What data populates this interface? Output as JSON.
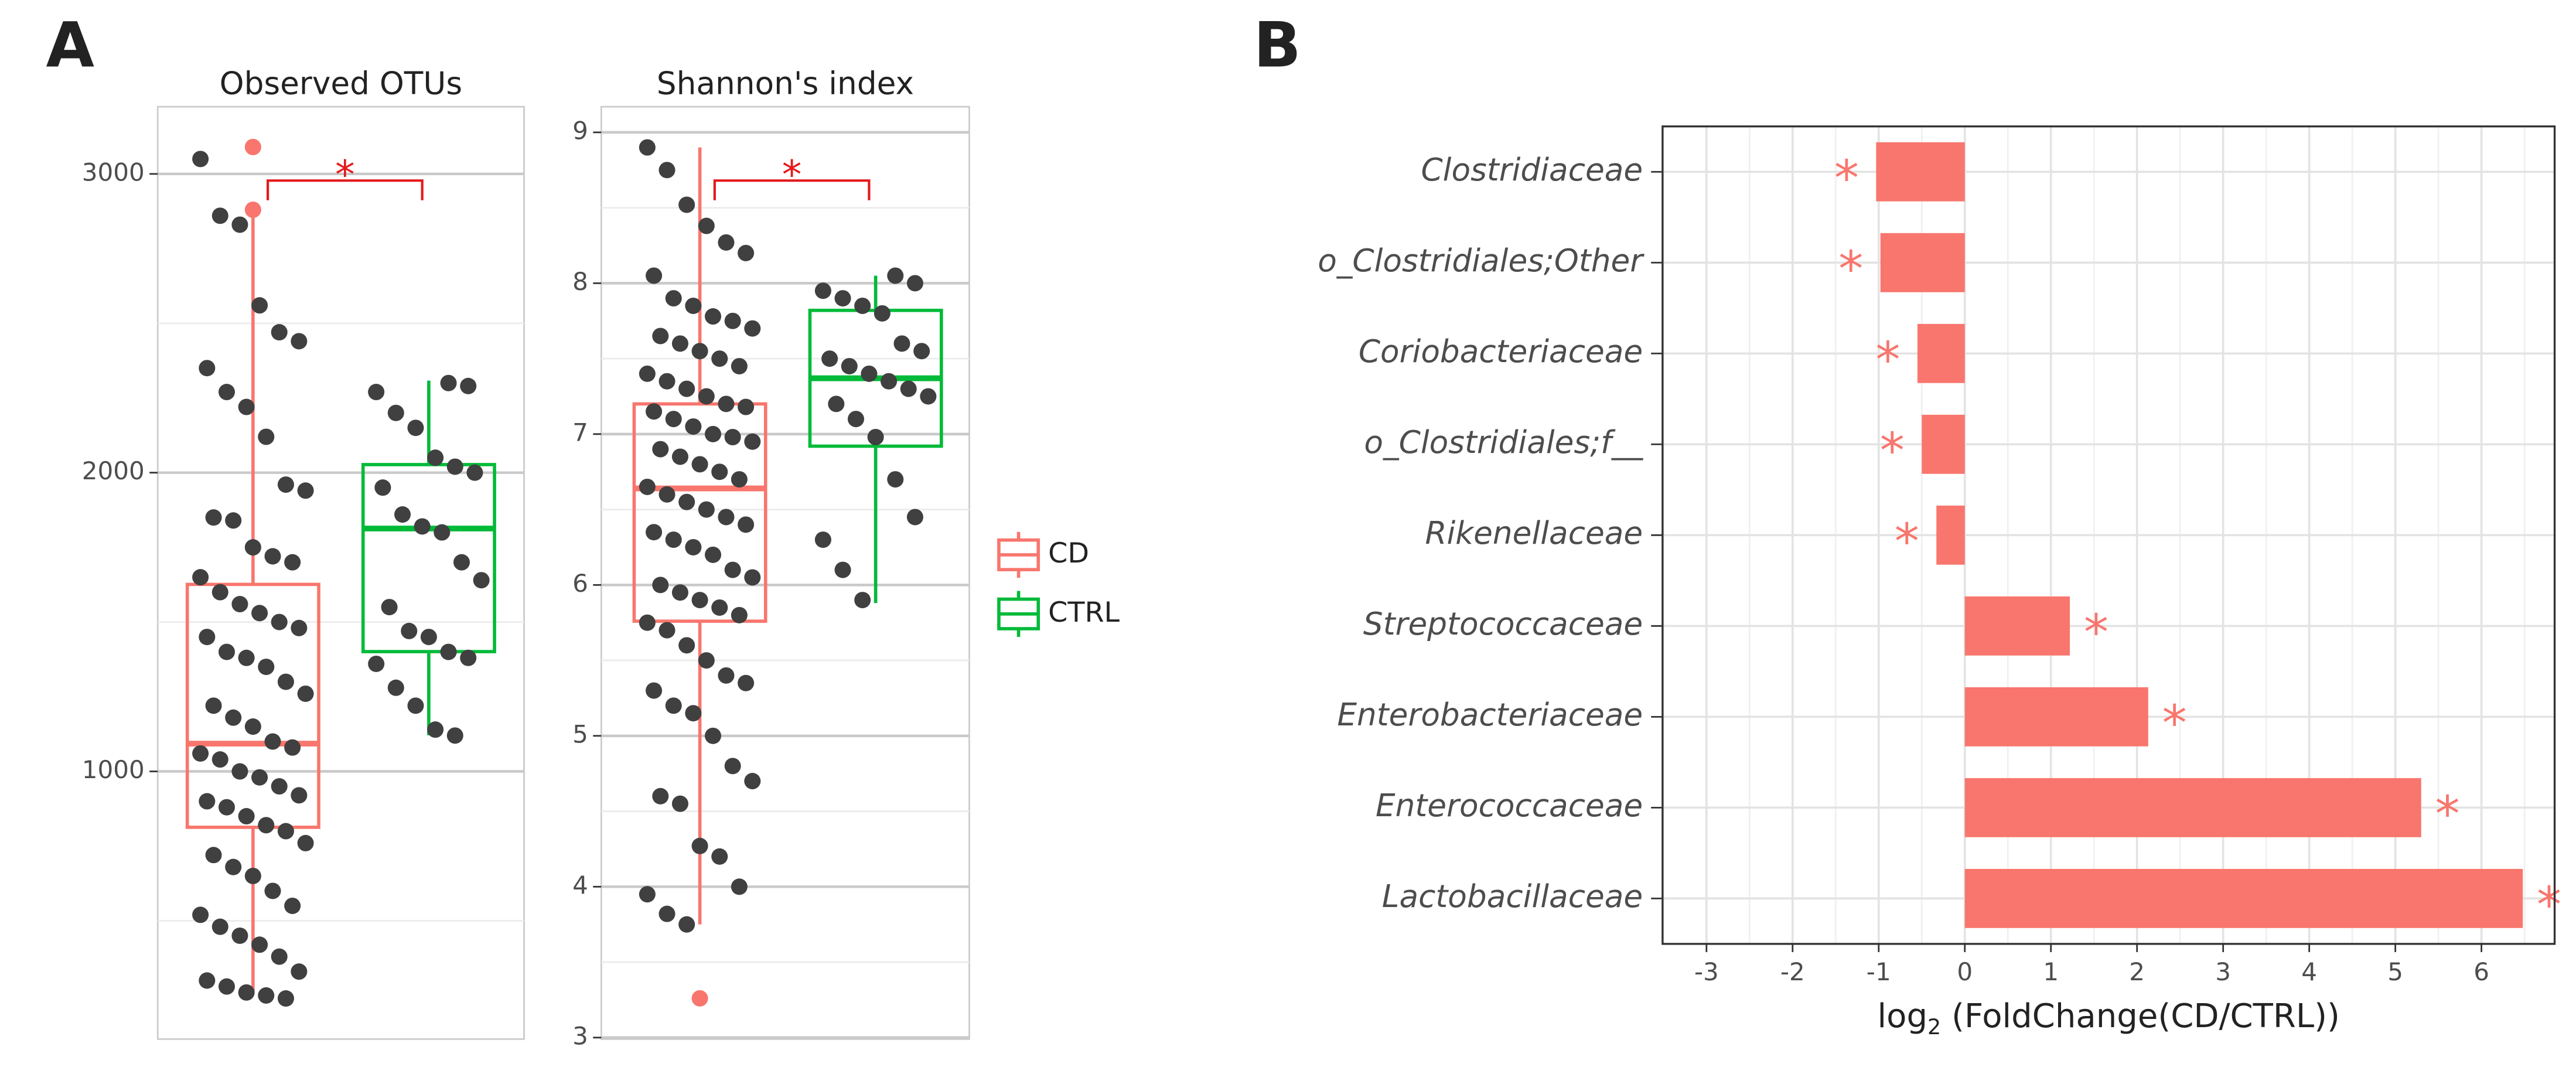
{
  "chart_data": [
    {
      "type": "box",
      "panel": "A",
      "title": "Observed OTUs",
      "ylim": [
        104,
        3225
      ],
      "yticks": [
        1000,
        2000,
        3000
      ],
      "minor_yticks": [
        500,
        1500,
        2500
      ],
      "grid": true,
      "significance": "*",
      "groups": [
        {
          "color": "#f8766d",
          "whisker_low": 258,
          "q1": 813,
          "median": 1093,
          "q3": 1626,
          "whisker_high": 2868,
          "outliers": [
            3090,
            2880
          ],
          "points": [
            3050,
            2860,
            2830,
            2560,
            2470,
            2440,
            2350,
            2270,
            2220,
            2120,
            1960,
            1940,
            1850,
            1840,
            1750,
            1720,
            1700,
            1650,
            1600,
            1560,
            1530,
            1500,
            1480,
            1450,
            1400,
            1380,
            1350,
            1300,
            1260,
            1220,
            1180,
            1150,
            1100,
            1080,
            1060,
            1040,
            1000,
            980,
            950,
            920,
            900,
            880,
            850,
            820,
            800,
            760,
            720,
            680,
            650,
            600,
            550,
            520,
            480,
            450,
            420,
            380,
            330,
            300,
            280,
            260,
            250,
            240
          ]
        },
        {
          "color": "#00ba38",
          "whisker_low": 1121,
          "q1": 1401,
          "median": 1813,
          "q3": 2027,
          "whisker_high": 2308,
          "outliers": [],
          "points": [
            2300,
            2290,
            2270,
            2200,
            2150,
            2050,
            2020,
            2000,
            1950,
            1860,
            1820,
            1800,
            1700,
            1640,
            1550,
            1470,
            1450,
            1400,
            1380,
            1360,
            1280,
            1220,
            1140,
            1120
          ]
        }
      ]
    },
    {
      "type": "box",
      "title": "Shannon's index",
      "ylim": [
        2.99,
        9.17
      ],
      "yticks": [
        3,
        4,
        5,
        6,
        7,
        8,
        9
      ],
      "minor_yticks": [
        3.5,
        4.5,
        5.5,
        6.5,
        7.5,
        8.5
      ],
      "grid": true,
      "significance": "*",
      "legend": true,
      "groups": [
        {
          "name": "CD",
          "color": "#f8766d",
          "whisker_low": 3.75,
          "q1": 5.76,
          "median": 6.64,
          "q3": 7.2,
          "whisker_high": 8.9,
          "outliers": [
            3.26
          ],
          "points": [
            8.9,
            8.75,
            8.52,
            8.38,
            8.27,
            8.2,
            8.05,
            7.9,
            7.85,
            7.78,
            7.75,
            7.7,
            7.65,
            7.6,
            7.55,
            7.5,
            7.45,
            7.4,
            7.35,
            7.3,
            7.25,
            7.2,
            7.18,
            7.15,
            7.1,
            7.05,
            7.0,
            6.98,
            6.95,
            6.9,
            6.85,
            6.8,
            6.75,
            6.7,
            6.65,
            6.6,
            6.55,
            6.5,
            6.45,
            6.4,
            6.35,
            6.3,
            6.25,
            6.2,
            6.1,
            6.05,
            6.0,
            5.95,
            5.9,
            5.85,
            5.8,
            5.75,
            5.7,
            5.6,
            5.5,
            5.4,
            5.35,
            5.3,
            5.2,
            5.15,
            5.0,
            4.8,
            4.7,
            4.6,
            4.55,
            4.27,
            4.2,
            4.0,
            3.95,
            3.82,
            3.75
          ]
        },
        {
          "name": "CTRL",
          "color": "#00ba38",
          "whisker_low": 5.88,
          "q1": 6.92,
          "median": 7.37,
          "q3": 7.82,
          "whisker_high": 8.05,
          "outliers": [],
          "points": [
            8.05,
            8.0,
            7.95,
            7.9,
            7.85,
            7.8,
            7.6,
            7.55,
            7.5,
            7.45,
            7.4,
            7.35,
            7.3,
            7.25,
            7.2,
            7.1,
            6.98,
            6.7,
            6.45,
            6.3,
            6.1,
            5.9
          ]
        }
      ]
    },
    {
      "type": "bar",
      "panel": "B",
      "orientation": "horizontal",
      "color": "#f8766d",
      "significance": "*",
      "categories": [
        "Clostridiaceae",
        "o_Clostridiales;Other",
        "Coriobacteriaceae",
        "o_Clostridiales;f__",
        "Rikenellaceae",
        "Streptococcaceae",
        "Enterobacteriaceae",
        "Enterococcaceae",
        "Lactobacillaceae"
      ],
      "values": [
        -1.03,
        -0.98,
        -0.55,
        -0.5,
        -0.33,
        1.22,
        2.13,
        5.3,
        6.48
      ],
      "xlim": [
        -3.51,
        6.85
      ],
      "xticks": [
        -3,
        -2,
        -1,
        0,
        1,
        2,
        3,
        4,
        5,
        6
      ],
      "minor_xticks": [
        -3.5,
        -2.5,
        -1.5,
        -0.5,
        0.5,
        1.5,
        2.5,
        3.5,
        4.5,
        5.5,
        6.5
      ],
      "grid": true,
      "x_label": [
        "log",
        "2",
        " (FoldChange(CD/CTRL))"
      ]
    }
  ]
}
